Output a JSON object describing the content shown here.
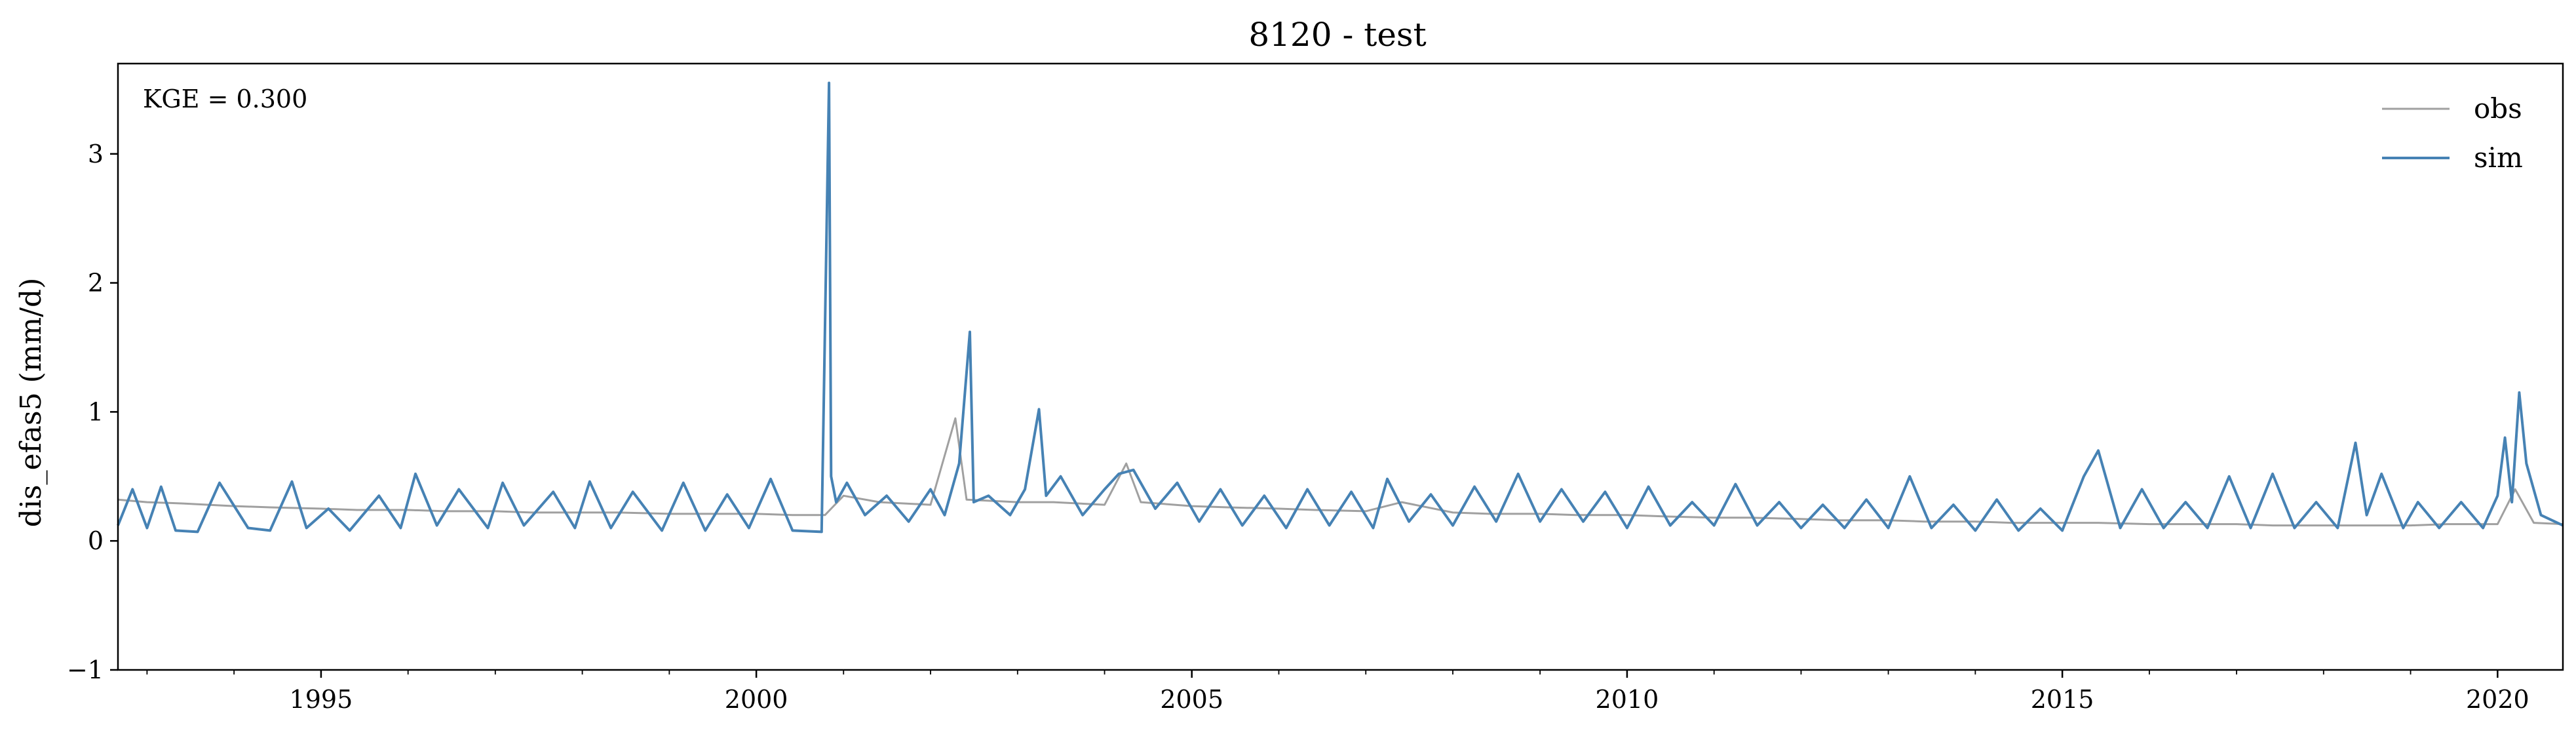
{
  "chart_data": {
    "type": "line",
    "title": "8120 - test",
    "xlabel": "",
    "ylabel": "dis_efas5 (mm/d)",
    "annotation": "KGE = 0.300",
    "xlim": [
      "1992-09-01",
      "2020-10-01"
    ],
    "ylim": [
      -1,
      3.7
    ],
    "x_ticks": [
      {
        "value": "1995-01-01",
        "label": "1995"
      },
      {
        "value": "2000-01-01",
        "label": "2000"
      },
      {
        "value": "2005-01-01",
        "label": "2005"
      },
      {
        "value": "2010-01-01",
        "label": "2010"
      },
      {
        "value": "2015-01-01",
        "label": "2015"
      },
      {
        "value": "2020-01-01",
        "label": "2020"
      }
    ],
    "y_ticks": [
      {
        "value": -1,
        "label": "−1"
      },
      {
        "value": 0,
        "label": "0"
      },
      {
        "value": 1,
        "label": "1"
      },
      {
        "value": 2,
        "label": "2"
      },
      {
        "value": 3,
        "label": "3"
      }
    ],
    "grid": false,
    "legend_position": "top-right",
    "series": [
      {
        "name": "obs",
        "color": "#a0a0a0",
        "x": [
          "1992-09-01",
          "1993-01-01",
          "1993-06-01",
          "1994-01-01",
          "1994-06-01",
          "1995-01-01",
          "1995-06-01",
          "1996-01-01",
          "1996-06-01",
          "1997-01-01",
          "1997-06-01",
          "1998-01-01",
          "1998-06-01",
          "1999-01-01",
          "1999-06-01",
          "2000-01-01",
          "2000-06-01",
          "2000-10-15",
          "2001-01-01",
          "2001-06-01",
          "2002-01-01",
          "2002-04-15",
          "2002-06-01",
          "2003-01-01",
          "2003-06-01",
          "2004-01-01",
          "2004-04-01",
          "2004-06-01",
          "2005-01-01",
          "2005-06-01",
          "2006-01-01",
          "2006-06-01",
          "2007-01-01",
          "2007-06-01",
          "2008-01-01",
          "2008-06-01",
          "2009-01-01",
          "2009-06-01",
          "2010-01-01",
          "2010-06-01",
          "2011-01-01",
          "2011-06-01",
          "2012-01-01",
          "2012-06-01",
          "2013-01-01",
          "2013-06-01",
          "2014-01-01",
          "2014-06-01",
          "2015-01-01",
          "2015-06-01",
          "2016-01-01",
          "2016-06-01",
          "2017-01-01",
          "2017-06-01",
          "2018-01-01",
          "2018-06-01",
          "2019-01-01",
          "2019-06-01",
          "2020-01-01",
          "2020-03-15",
          "2020-06-01",
          "2020-10-01"
        ],
        "values": [
          0.32,
          0.3,
          0.29,
          0.27,
          0.26,
          0.25,
          0.24,
          0.24,
          0.23,
          0.23,
          0.22,
          0.22,
          0.22,
          0.21,
          0.21,
          0.21,
          0.2,
          0.2,
          0.35,
          0.3,
          0.28,
          0.95,
          0.32,
          0.3,
          0.3,
          0.28,
          0.6,
          0.3,
          0.27,
          0.26,
          0.25,
          0.24,
          0.23,
          0.3,
          0.22,
          0.21,
          0.21,
          0.2,
          0.2,
          0.19,
          0.18,
          0.18,
          0.17,
          0.16,
          0.16,
          0.15,
          0.15,
          0.14,
          0.14,
          0.14,
          0.13,
          0.13,
          0.13,
          0.12,
          0.12,
          0.12,
          0.12,
          0.13,
          0.13,
          0.4,
          0.14,
          0.13
        ]
      },
      {
        "name": "sim",
        "color": "#4682b4",
        "x": [
          "1992-09-01",
          "1992-11-01",
          "1993-01-01",
          "1993-03-01",
          "1993-05-01",
          "1993-08-01",
          "1993-11-01",
          "1994-03-01",
          "1994-06-01",
          "1994-09-01",
          "1994-11-01",
          "1995-02-01",
          "1995-05-01",
          "1995-09-01",
          "1995-12-01",
          "1996-02-01",
          "1996-05-01",
          "1996-08-01",
          "1996-12-01",
          "1997-02-01",
          "1997-05-01",
          "1997-09-01",
          "1997-12-01",
          "1998-02-01",
          "1998-05-01",
          "1998-08-01",
          "1998-12-01",
          "1999-03-01",
          "1999-06-01",
          "1999-09-01",
          "1999-12-01",
          "2000-03-01",
          "2000-06-01",
          "2000-10-01",
          "2000-11-01",
          "2000-11-10",
          "2000-12-01",
          "2001-01-15",
          "2001-04-01",
          "2001-07-01",
          "2001-10-01",
          "2002-01-01",
          "2002-03-01",
          "2002-05-01",
          "2002-06-15",
          "2002-07-01",
          "2002-09-01",
          "2002-12-01",
          "2003-02-01",
          "2003-04-01",
          "2003-05-01",
          "2003-07-01",
          "2003-10-01",
          "2004-01-01",
          "2004-03-01",
          "2004-05-01",
          "2004-08-01",
          "2004-11-01",
          "2005-02-01",
          "2005-05-01",
          "2005-08-01",
          "2005-11-01",
          "2006-02-01",
          "2006-05-01",
          "2006-08-01",
          "2006-11-01",
          "2007-02-01",
          "2007-04-01",
          "2007-07-01",
          "2007-10-01",
          "2008-01-01",
          "2008-04-01",
          "2008-07-01",
          "2008-10-01",
          "2009-01-01",
          "2009-04-01",
          "2009-07-01",
          "2009-10-01",
          "2010-01-01",
          "2010-04-01",
          "2010-07-01",
          "2010-10-01",
          "2011-01-01",
          "2011-04-01",
          "2011-07-01",
          "2011-10-01",
          "2012-01-01",
          "2012-04-01",
          "2012-07-01",
          "2012-10-01",
          "2013-01-01",
          "2013-04-01",
          "2013-07-01",
          "2013-10-01",
          "2014-01-01",
          "2014-04-01",
          "2014-07-01",
          "2014-10-01",
          "2015-01-01",
          "2015-04-01",
          "2015-06-01",
          "2015-09-01",
          "2015-12-01",
          "2016-03-01",
          "2016-06-01",
          "2016-09-01",
          "2016-12-01",
          "2017-03-01",
          "2017-06-01",
          "2017-09-01",
          "2017-12-01",
          "2018-03-01",
          "2018-05-15",
          "2018-07-01",
          "2018-09-01",
          "2018-12-01",
          "2019-02-01",
          "2019-05-01",
          "2019-08-01",
          "2019-11-01",
          "2020-01-01",
          "2020-02-01",
          "2020-03-01",
          "2020-04-01",
          "2020-05-01",
          "2020-07-01",
          "2020-10-01"
        ],
        "values": [
          0.12,
          0.4,
          0.1,
          0.42,
          0.08,
          0.07,
          0.45,
          0.1,
          0.08,
          0.46,
          0.1,
          0.25,
          0.08,
          0.35,
          0.1,
          0.52,
          0.12,
          0.4,
          0.1,
          0.45,
          0.12,
          0.38,
          0.1,
          0.46,
          0.1,
          0.38,
          0.08,
          0.45,
          0.08,
          0.36,
          0.1,
          0.48,
          0.08,
          0.07,
          3.55,
          0.5,
          0.3,
          0.45,
          0.2,
          0.35,
          0.15,
          0.4,
          0.2,
          0.6,
          1.62,
          0.3,
          0.35,
          0.2,
          0.4,
          1.02,
          0.35,
          0.5,
          0.2,
          0.4,
          0.52,
          0.55,
          0.25,
          0.45,
          0.15,
          0.4,
          0.12,
          0.35,
          0.1,
          0.4,
          0.12,
          0.38,
          0.1,
          0.48,
          0.15,
          0.36,
          0.12,
          0.42,
          0.15,
          0.52,
          0.15,
          0.4,
          0.15,
          0.38,
          0.1,
          0.42,
          0.12,
          0.3,
          0.12,
          0.44,
          0.12,
          0.3,
          0.1,
          0.28,
          0.1,
          0.32,
          0.1,
          0.5,
          0.1,
          0.28,
          0.08,
          0.32,
          0.08,
          0.25,
          0.08,
          0.5,
          0.7,
          0.1,
          0.4,
          0.1,
          0.3,
          0.1,
          0.5,
          0.1,
          0.52,
          0.1,
          0.3,
          0.1,
          0.76,
          0.2,
          0.52,
          0.1,
          0.3,
          0.1,
          0.3,
          0.1,
          0.35,
          0.8,
          0.3,
          1.15,
          0.6,
          0.2,
          0.12
        ]
      }
    ]
  }
}
